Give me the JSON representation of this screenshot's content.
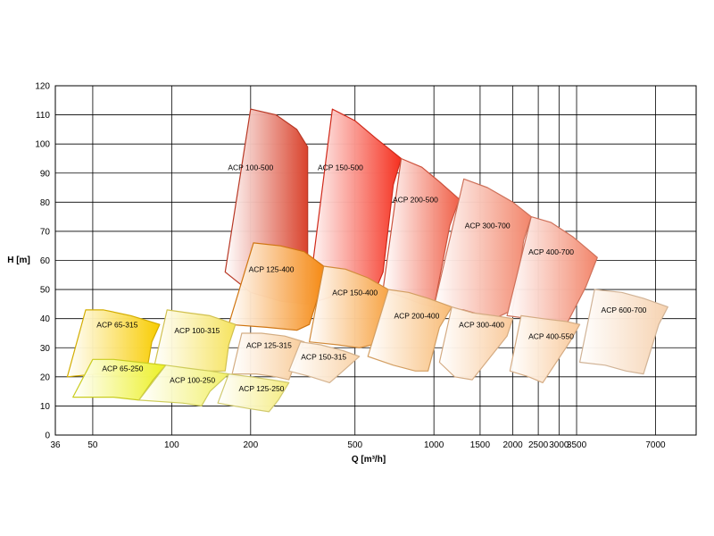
{
  "chart_data": {
    "type": "area",
    "title": "",
    "xlabel": "Q [m³/h]",
    "ylabel": "H [m]",
    "x_scale": "log",
    "xlim": [
      36,
      10000
    ],
    "ylim": [
      0,
      120
    ],
    "x_ticks": [
      36,
      50,
      100,
      200,
      500,
      1000,
      1500,
      2000,
      2500,
      3000,
      3500,
      7000
    ],
    "y_ticks": [
      0,
      10,
      20,
      30,
      40,
      50,
      60,
      70,
      80,
      90,
      100,
      110,
      120
    ],
    "grid": true,
    "legend": "none",
    "colors": {
      "red_dark": "#d9422c",
      "red_bright": "#f5301f",
      "red_mid": "#f06048",
      "red_light": "#f2856a",
      "orange_dark": "#f58a14",
      "orange_mid": "#f7a445",
      "orange_light": "#f8bb75",
      "peach": "#f9c99a",
      "peach_light": "#f6d2b0",
      "yellow_dark": "#f8cc00",
      "yellow_light": "#f6e35e",
      "lime": "#ecf024",
      "pale_yellow": "#f5ec80"
    },
    "series": [
      {
        "name": "ACP 100-500",
        "color": "#d9422c",
        "label_at": [
          200,
          91
        ],
        "points": [
          [
            160,
            56
          ],
          [
            200,
            112
          ],
          [
            250,
            110
          ],
          [
            300,
            105
          ],
          [
            330,
            99
          ],
          [
            330,
            45
          ],
          [
            260,
            46
          ],
          [
            200,
            49
          ]
        ]
      },
      {
        "name": "ACP 150-500",
        "color": "#f5301f",
        "label_at": [
          440,
          91
        ],
        "points": [
          [
            330,
            45
          ],
          [
            410,
            112
          ],
          [
            500,
            108
          ],
          [
            600,
            102
          ],
          [
            750,
            95
          ],
          [
            700,
            86
          ],
          [
            640,
            56
          ],
          [
            600,
            50
          ],
          [
            500,
            50
          ]
        ]
      },
      {
        "name": "ACP 200-500",
        "color": "#f06048",
        "label_at": [
          850,
          80
        ],
        "points": [
          [
            640,
            50
          ],
          [
            750,
            95
          ],
          [
            900,
            92
          ],
          [
            1050,
            87
          ],
          [
            1250,
            81
          ],
          [
            1150,
            72
          ],
          [
            1000,
            44
          ],
          [
            900,
            45
          ]
        ]
      },
      {
        "name": "ACP 300-700",
        "color": "#f2856a",
        "label_at": [
          1600,
          71
        ],
        "points": [
          [
            1000,
            44
          ],
          [
            1300,
            88
          ],
          [
            1600,
            85
          ],
          [
            2000,
            80
          ],
          [
            2350,
            75
          ],
          [
            2200,
            67
          ],
          [
            2000,
            43
          ],
          [
            1700,
            40
          ],
          [
            1300,
            43
          ]
        ]
      },
      {
        "name": "ACP 400-700",
        "color": "#f2856a",
        "label_at": [
          2800,
          62
        ],
        "points": [
          [
            1900,
            41
          ],
          [
            2350,
            75
          ],
          [
            2800,
            73
          ],
          [
            3400,
            68
          ],
          [
            4200,
            61
          ],
          [
            3800,
            51
          ],
          [
            3200,
            38
          ],
          [
            2900,
            39
          ],
          [
            2300,
            40
          ]
        ]
      },
      {
        "name": "ACP 600-700",
        "color": "#f6d2b0",
        "label_at": [
          5300,
          42
        ],
        "points": [
          [
            3600,
            25
          ],
          [
            4100,
            50
          ],
          [
            5200,
            49
          ],
          [
            6300,
            47
          ],
          [
            7800,
            44
          ],
          [
            7200,
            38
          ],
          [
            6300,
            21
          ],
          [
            5400,
            22
          ],
          [
            4500,
            24
          ]
        ]
      },
      {
        "name": "ACP 125-400",
        "color": "#f58a14",
        "label_at": [
          240,
          56
        ],
        "points": [
          [
            165,
            38
          ],
          [
            205,
            66
          ],
          [
            260,
            65
          ],
          [
            320,
            63
          ],
          [
            380,
            58
          ],
          [
            360,
            47
          ],
          [
            335,
            38
          ],
          [
            300,
            36
          ],
          [
            230,
            37
          ]
        ]
      },
      {
        "name": "ACP 150-400",
        "color": "#f7a445",
        "label_at": [
          500,
          48
        ],
        "points": [
          [
            335,
            32
          ],
          [
            380,
            58
          ],
          [
            460,
            57
          ],
          [
            560,
            54
          ],
          [
            670,
            50
          ],
          [
            640,
            43
          ],
          [
            580,
            31
          ],
          [
            520,
            30
          ],
          [
            430,
            31
          ]
        ]
      },
      {
        "name": "ACP 200-400",
        "color": "#f8bb75",
        "label_at": [
          860,
          40
        ],
        "points": [
          [
            560,
            27
          ],
          [
            670,
            50
          ],
          [
            800,
            49
          ],
          [
            950,
            47
          ],
          [
            1170,
            44
          ],
          [
            1050,
            37
          ],
          [
            950,
            22
          ],
          [
            850,
            22
          ],
          [
            700,
            24
          ]
        ]
      },
      {
        "name": "ACP 300-400",
        "color": "#f9c99a",
        "label_at": [
          1520,
          37
        ],
        "points": [
          [
            1050,
            25
          ],
          [
            1170,
            44
          ],
          [
            1400,
            42
          ],
          [
            1700,
            41
          ],
          [
            2000,
            40
          ],
          [
            1900,
            34
          ],
          [
            1400,
            19
          ],
          [
            1200,
            20
          ]
        ]
      },
      {
        "name": "ACP 400-550",
        "color": "#f9c99a",
        "label_at": [
          2800,
          33
        ],
        "points": [
          [
            1950,
            22
          ],
          [
            2150,
            41
          ],
          [
            2600,
            40
          ],
          [
            3200,
            39
          ],
          [
            3600,
            38
          ],
          [
            3300,
            32
          ],
          [
            2600,
            18
          ],
          [
            2300,
            20
          ]
        ]
      },
      {
        "name": "ACP 65-315",
        "color": "#f8cc00",
        "label_at": [
          62,
          37
        ],
        "points": [
          [
            40,
            20
          ],
          [
            47,
            43
          ],
          [
            55,
            43
          ],
          [
            70,
            41
          ],
          [
            90,
            38
          ],
          [
            84,
            32
          ],
          [
            80,
            21
          ],
          [
            68,
            20
          ],
          [
            52,
            21
          ]
        ]
      },
      {
        "name": "ACP 100-315",
        "color": "#f6e35e",
        "label_at": [
          125,
          35
        ],
        "points": [
          [
            85,
            22
          ],
          [
            96,
            43
          ],
          [
            115,
            42
          ],
          [
            140,
            41
          ],
          [
            175,
            38
          ],
          [
            165,
            31
          ],
          [
            160,
            22
          ],
          [
            140,
            22
          ],
          [
            110,
            23
          ]
        ]
      },
      {
        "name": "ACP 125-315",
        "color": "#f8cc9a",
        "label_at": [
          235,
          30
        ],
        "points": [
          [
            170,
            21
          ],
          [
            185,
            35
          ],
          [
            220,
            35
          ],
          [
            270,
            34
          ],
          [
            320,
            32
          ],
          [
            300,
            26
          ],
          [
            280,
            19
          ],
          [
            250,
            20
          ],
          [
            210,
            21
          ]
        ]
      },
      {
        "name": "ACP 150-315",
        "color": "#f9d3a8",
        "label_at": [
          380,
          26
        ],
        "points": [
          [
            280,
            22
          ],
          [
            310,
            32
          ],
          [
            370,
            31
          ],
          [
            450,
            29
          ],
          [
            520,
            27
          ],
          [
            450,
            22
          ],
          [
            400,
            18
          ],
          [
            340,
            20
          ]
        ]
      },
      {
        "name": "ACP 65-250",
        "color": "#ecf024",
        "label_at": [
          65,
          22
        ],
        "points": [
          [
            42,
            13
          ],
          [
            50,
            26
          ],
          [
            60,
            26
          ],
          [
            75,
            25
          ],
          [
            95,
            24
          ],
          [
            85,
            19
          ],
          [
            75,
            12
          ],
          [
            60,
            13
          ]
        ]
      },
      {
        "name": "ACP 100-250",
        "color": "#f2f06a",
        "label_at": [
          120,
          18
        ],
        "points": [
          [
            75,
            12
          ],
          [
            95,
            24
          ],
          [
            115,
            23
          ],
          [
            140,
            22
          ],
          [
            165,
            21
          ],
          [
            140,
            15
          ],
          [
            130,
            10
          ],
          [
            110,
            11
          ]
        ]
      },
      {
        "name": "ACP 125-250",
        "color": "#f5ec80",
        "label_at": [
          220,
          15
        ],
        "points": [
          [
            150,
            11
          ],
          [
            165,
            21
          ],
          [
            200,
            20
          ],
          [
            240,
            19
          ],
          [
            280,
            18
          ],
          [
            255,
            12
          ],
          [
            235,
            8
          ],
          [
            200,
            9
          ]
        ]
      }
    ]
  }
}
